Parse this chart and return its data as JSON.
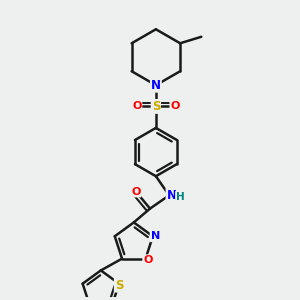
{
  "bg_color": "#eef0f0",
  "bond_color": "#1a1a1a",
  "atom_colors": {
    "N": "#0000ff",
    "O": "#ff0000",
    "S": "#ccaa00",
    "H": "#008080",
    "C": "#1a1a1a"
  },
  "figure_width": 3.0,
  "figure_height": 3.0,
  "dpi": 100
}
